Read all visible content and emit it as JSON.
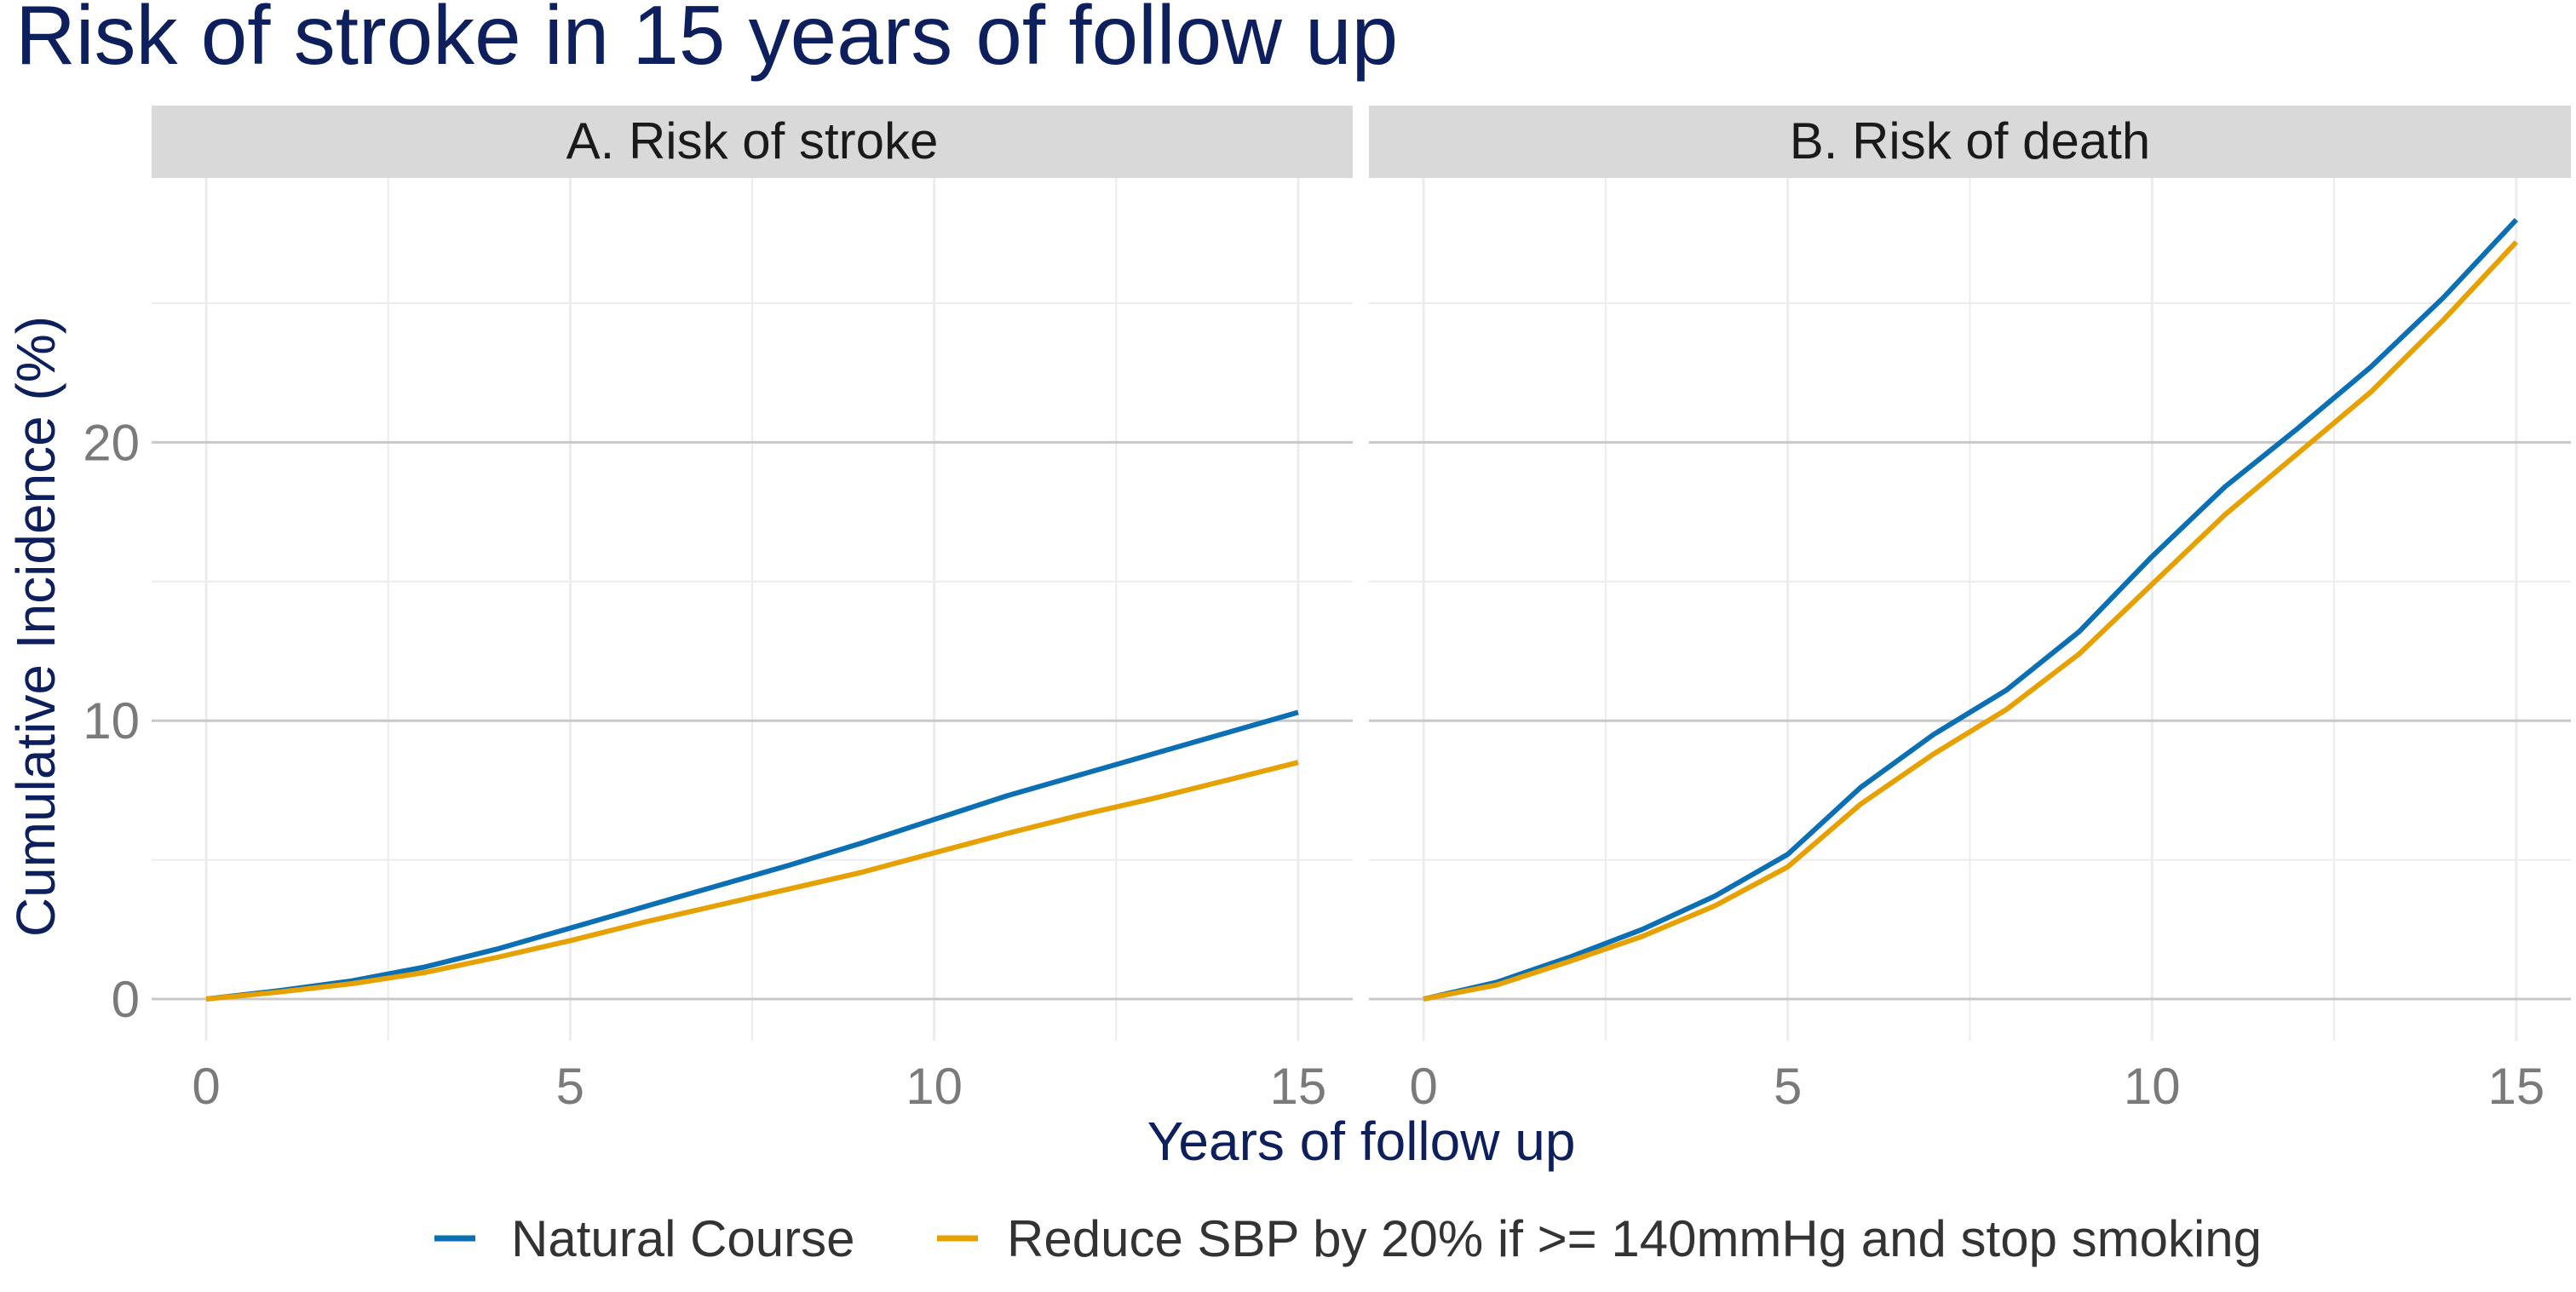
{
  "colors": {
    "title": "#0d1f5c",
    "strip_bg": "#d9d9d9",
    "major_grid": "#c8c8c8",
    "minor_grid": "#ececec",
    "tick_text": "#7a7a7a",
    "axis_title": "#0d1f5c",
    "natural": "#0b6fb3",
    "intervention": "#e6a100"
  },
  "chart_data": {
    "type": "line",
    "title": "Risk of stroke in 15 years of follow up",
    "xlabel": "Years of follow up",
    "ylabel": "Cumulative Incidence (%)",
    "xlim": [
      -0.75,
      15.75
    ],
    "ylim": [
      -1.5,
      29.5
    ],
    "x_ticks": [
      0,
      5,
      10,
      15
    ],
    "x_tick_labels": [
      "0",
      "5",
      "10",
      "15"
    ],
    "y_ticks": [
      0,
      10,
      20
    ],
    "y_tick_labels": [
      "0",
      "10",
      "20"
    ],
    "grid": true,
    "legend_position": "bottom",
    "legend": [
      {
        "name": "Natural Course",
        "color": "#0b6fb3"
      },
      {
        "name": "Reduce SBP by 20% if >= 140mmHg and stop smoking",
        "color": "#e6a100"
      }
    ],
    "panels": [
      {
        "title": "A. Risk of stroke",
        "x": [
          0,
          1,
          2,
          3,
          4,
          5,
          6,
          7,
          8,
          9,
          10,
          11,
          12,
          13,
          14,
          15
        ],
        "series": [
          {
            "name": "Natural Course",
            "values": [
              0,
              0.3,
              0.65,
              1.15,
              1.8,
              2.55,
              3.3,
              4.05,
              4.8,
              5.6,
              6.45,
              7.3,
              8.05,
              8.8,
              9.55,
              10.3
            ]
          },
          {
            "name": "Reduce SBP by 20% if >= 140mmHg and stop smoking",
            "values": [
              0,
              0.25,
              0.55,
              0.95,
              1.5,
              2.1,
              2.75,
              3.35,
              3.95,
              4.55,
              5.25,
              5.95,
              6.6,
              7.2,
              7.85,
              8.5
            ]
          }
        ]
      },
      {
        "title": "B. Risk of death",
        "x": [
          0,
          1,
          2,
          3,
          4,
          5,
          6,
          7,
          8,
          9,
          10,
          11,
          12,
          13,
          14,
          15
        ],
        "series": [
          {
            "name": "Natural Course",
            "values": [
              0,
              0.6,
              1.5,
              2.5,
              3.7,
              5.2,
              7.6,
              9.5,
              11.1,
              13.2,
              15.9,
              18.4,
              20.5,
              22.7,
              25.2,
              28.0
            ]
          },
          {
            "name": "Reduce SBP by 20% if >= 140mmHg and stop smoking",
            "values": [
              0,
              0.5,
              1.35,
              2.25,
              3.35,
              4.75,
              7.0,
              8.8,
              10.4,
              12.4,
              14.9,
              17.4,
              19.6,
              21.8,
              24.4,
              27.2
            ]
          }
        ]
      }
    ]
  }
}
